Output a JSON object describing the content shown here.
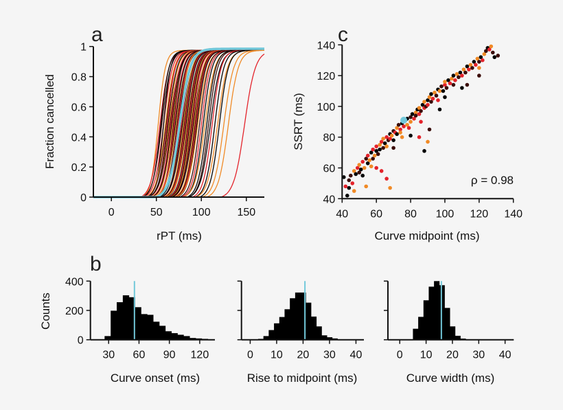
{
  "colors": {
    "black": "#050505",
    "dark_brown": "#3b0d0a",
    "red": "#e3232b",
    "orange": "#f08a26",
    "highlight": "#72c8da"
  },
  "chart_data": [
    {
      "panel": "a",
      "type": "line",
      "xlabel": "rPT (ms)",
      "ylabel": "Fraction cancelled",
      "xlim": [
        -20,
        170
      ],
      "ylim": [
        0,
        1
      ],
      "xticks": [
        0,
        50,
        100,
        150
      ],
      "yticks": [
        0,
        0.2,
        0.4,
        0.6,
        0.8,
        1
      ],
      "ytick_labels": [
        "0",
        "0.2",
        "0.4",
        "0.6",
        "0.8",
        "1"
      ],
      "series_color_order": [
        "black",
        "red",
        "orange",
        "dark_brown"
      ],
      "curves": [
        {
          "midpoint": 52,
          "width": 4,
          "c": 2
        },
        {
          "midpoint": 54,
          "width": 5,
          "c": 1
        },
        {
          "midpoint": 55,
          "width": 4.5,
          "c": 0
        },
        {
          "midpoint": 56,
          "width": 5,
          "c": 3
        },
        {
          "midpoint": 58,
          "width": 5,
          "c": 1
        },
        {
          "midpoint": 58,
          "width": 4,
          "c": 0
        },
        {
          "midpoint": 60,
          "width": 5,
          "c": 2
        },
        {
          "midpoint": 61,
          "width": 5,
          "c": 3
        },
        {
          "midpoint": 62,
          "width": 4.5,
          "c": 1
        },
        {
          "midpoint": 63,
          "width": 5,
          "c": 0
        },
        {
          "midpoint": 64,
          "width": 5,
          "c": 2
        },
        {
          "midpoint": 65,
          "width": 5.5,
          "c": 3
        },
        {
          "midpoint": 66,
          "width": 5,
          "c": 1
        },
        {
          "midpoint": 67,
          "width": 5,
          "c": 0
        },
        {
          "midpoint": 68,
          "width": 5,
          "c": 2
        },
        {
          "midpoint": 69,
          "width": 4.5,
          "c": 3
        },
        {
          "midpoint": 70,
          "width": 5,
          "c": 1
        },
        {
          "midpoint": 71,
          "width": 5,
          "c": 0
        },
        {
          "midpoint": 72,
          "width": 5.5,
          "c": 2
        },
        {
          "midpoint": 73,
          "width": 5,
          "c": 3
        },
        {
          "midpoint": 74,
          "width": 5,
          "c": 1
        },
        {
          "midpoint": 75,
          "width": 5,
          "c": 0
        },
        {
          "midpoint": 76,
          "width": 4.5,
          "c": 2
        },
        {
          "midpoint": 77,
          "width": 5,
          "c": 3
        },
        {
          "midpoint": 78,
          "width": 5,
          "c": 1
        },
        {
          "midpoint": 79,
          "width": 5.5,
          "c": 0
        },
        {
          "midpoint": 80,
          "width": 5,
          "c": 2
        },
        {
          "midpoint": 81,
          "width": 5,
          "c": 3
        },
        {
          "midpoint": 82,
          "width": 5,
          "c": 1
        },
        {
          "midpoint": 83,
          "width": 5,
          "c": 0
        },
        {
          "midpoint": 84,
          "width": 5.5,
          "c": 2
        },
        {
          "midpoint": 85,
          "width": 5,
          "c": 3
        },
        {
          "midpoint": 86,
          "width": 5,
          "c": 1
        },
        {
          "midpoint": 87,
          "width": 5,
          "c": 0
        },
        {
          "midpoint": 88,
          "width": 5,
          "c": 2
        },
        {
          "midpoint": 89,
          "width": 5,
          "c": 3
        },
        {
          "midpoint": 90,
          "width": 5,
          "c": 1
        },
        {
          "midpoint": 91,
          "width": 5.5,
          "c": 0
        },
        {
          "midpoint": 92,
          "width": 5,
          "c": 2
        },
        {
          "midpoint": 93,
          "width": 5,
          "c": 3
        },
        {
          "midpoint": 94,
          "width": 5,
          "c": 1
        },
        {
          "midpoint": 95,
          "width": 5,
          "c": 0
        },
        {
          "midpoint": 96,
          "width": 5.5,
          "c": 2
        },
        {
          "midpoint": 98,
          "width": 5,
          "c": 3
        },
        {
          "midpoint": 100,
          "width": 5,
          "c": 1
        },
        {
          "midpoint": 102,
          "width": 5,
          "c": 0
        },
        {
          "midpoint": 104,
          "width": 5.5,
          "c": 2
        },
        {
          "midpoint": 106,
          "width": 5,
          "c": 0
        },
        {
          "midpoint": 108,
          "width": 5,
          "c": 3
        },
        {
          "midpoint": 110,
          "width": 5.5,
          "c": 0
        },
        {
          "midpoint": 112,
          "width": 5,
          "c": 1
        },
        {
          "midpoint": 115,
          "width": 5,
          "c": 0
        },
        {
          "midpoint": 118,
          "width": 5.5,
          "c": 2
        },
        {
          "midpoint": 120,
          "width": 5,
          "c": 0
        },
        {
          "midpoint": 125,
          "width": 5.5,
          "c": 2
        },
        {
          "midpoint": 130,
          "width": 5.5,
          "c": 2
        },
        {
          "midpoint": 148,
          "width": 6,
          "c": 1
        }
      ],
      "highlight_curve": {
        "midpoint": 76,
        "width": 6
      }
    },
    {
      "panel": "c",
      "type": "scatter",
      "xlabel": "Curve midpoint (ms)",
      "ylabel": "SSRT (ms)",
      "xlim": [
        40,
        140
      ],
      "ylim": [
        40,
        140
      ],
      "xticks": [
        40,
        60,
        80,
        100,
        120,
        140
      ],
      "yticks": [
        40,
        60,
        80,
        100,
        120,
        140
      ],
      "annotation": "ρ = 0.98",
      "point_color_order": [
        "black",
        "dark_brown",
        "red",
        "orange"
      ],
      "points": [
        [
          43,
          42,
          0
        ],
        [
          44,
          47,
          0
        ],
        [
          45,
          55,
          1
        ],
        [
          46,
          50,
          2
        ],
        [
          47,
          58,
          3
        ],
        [
          48,
          56,
          0
        ],
        [
          49,
          60,
          2
        ],
        [
          50,
          57,
          1
        ],
        [
          50,
          62,
          3
        ],
        [
          51,
          59,
          0
        ],
        [
          52,
          64,
          2
        ],
        [
          53,
          60,
          3
        ],
        [
          54,
          66,
          1
        ],
        [
          55,
          63,
          0
        ],
        [
          55,
          68,
          2
        ],
        [
          56,
          65,
          3
        ],
        [
          57,
          70,
          0
        ],
        [
          58,
          66,
          1
        ],
        [
          58,
          72,
          2
        ],
        [
          59,
          68,
          3
        ],
        [
          60,
          71,
          0
        ],
        [
          60,
          74,
          2
        ],
        [
          61,
          69,
          1
        ],
        [
          62,
          75,
          3
        ],
        [
          62,
          72,
          0
        ],
        [
          63,
          77,
          2
        ],
        [
          64,
          73,
          1
        ],
        [
          64,
          79,
          3
        ],
        [
          65,
          76,
          0
        ],
        [
          66,
          80,
          2
        ],
        [
          66,
          74,
          3
        ],
        [
          67,
          78,
          1
        ],
        [
          68,
          82,
          0
        ],
        [
          68,
          79,
          2
        ],
        [
          69,
          81,
          3
        ],
        [
          70,
          84,
          1
        ],
        [
          70,
          78,
          0
        ],
        [
          71,
          83,
          2
        ],
        [
          72,
          86,
          3
        ],
        [
          72,
          82,
          0
        ],
        [
          73,
          88,
          1
        ],
        [
          74,
          85,
          2
        ],
        [
          74,
          83,
          3
        ],
        [
          75,
          89,
          0
        ],
        [
          76,
          87,
          2
        ],
        [
          77,
          91,
          1
        ],
        [
          78,
          88,
          3
        ],
        [
          78,
          92,
          0
        ],
        [
          79,
          86,
          2
        ],
        [
          80,
          93,
          1
        ],
        [
          80,
          90,
          3
        ],
        [
          81,
          95,
          0
        ],
        [
          82,
          92,
          2
        ],
        [
          83,
          96,
          3
        ],
        [
          83,
          94,
          1
        ],
        [
          84,
          98,
          0
        ],
        [
          85,
          95,
          2
        ],
        [
          85,
          99,
          3
        ],
        [
          86,
          97,
          1
        ],
        [
          87,
          101,
          0
        ],
        [
          88,
          99,
          2
        ],
        [
          88,
          103,
          3
        ],
        [
          89,
          100,
          1
        ],
        [
          90,
          104,
          0
        ],
        [
          90,
          101,
          2
        ],
        [
          91,
          106,
          3
        ],
        [
          92,
          103,
          1
        ],
        [
          92,
          108,
          0
        ],
        [
          93,
          105,
          2
        ],
        [
          94,
          109,
          3
        ],
        [
          95,
          107,
          1
        ],
        [
          96,
          111,
          0
        ],
        [
          96,
          104,
          2
        ],
        [
          97,
          110,
          3
        ],
        [
          98,
          113,
          1
        ],
        [
          99,
          110,
          0
        ],
        [
          100,
          114,
          2
        ],
        [
          100,
          116,
          3
        ],
        [
          101,
          112,
          1
        ],
        [
          102,
          117,
          0
        ],
        [
          103,
          115,
          2
        ],
        [
          104,
          118,
          3
        ],
        [
          105,
          114,
          1
        ],
        [
          105,
          120,
          0
        ],
        [
          106,
          117,
          2
        ],
        [
          107,
          121,
          3
        ],
        [
          108,
          119,
          1
        ],
        [
          109,
          122,
          0
        ],
        [
          110,
          120,
          2
        ],
        [
          111,
          124,
          3
        ],
        [
          112,
          122,
          1
        ],
        [
          113,
          126,
          0
        ],
        [
          114,
          124,
          2
        ],
        [
          115,
          127,
          3
        ],
        [
          116,
          125,
          1
        ],
        [
          117,
          129,
          0
        ],
        [
          118,
          127,
          2
        ],
        [
          119,
          131,
          3
        ],
        [
          120,
          129,
          1
        ],
        [
          121,
          132,
          0
        ],
        [
          122,
          130,
          2
        ],
        [
          123,
          134,
          3
        ],
        [
          124,
          136,
          1
        ],
        [
          125,
          138,
          0
        ],
        [
          126,
          137,
          2
        ],
        [
          127,
          139,
          3
        ],
        [
          128,
          135,
          1
        ],
        [
          129,
          132,
          0
        ],
        [
          131,
          133,
          1
        ],
        [
          120,
          120,
          1
        ],
        [
          113,
          114,
          1
        ],
        [
          88,
          71,
          0
        ],
        [
          90,
          77,
          3
        ],
        [
          85,
          80,
          2
        ],
        [
          66,
          53,
          2
        ],
        [
          68,
          47,
          3
        ],
        [
          63,
          58,
          2
        ],
        [
          54,
          48,
          3
        ],
        [
          42,
          48,
          2
        ],
        [
          41,
          54,
          0
        ],
        [
          91,
          85,
          1
        ],
        [
          97,
          98,
          0
        ],
        [
          60,
          60,
          2
        ],
        [
          80,
          81,
          0
        ],
        [
          44,
          52,
          1
        ],
        [
          47,
          45,
          3
        ],
        [
          120,
          125,
          3
        ],
        [
          110,
          112,
          0
        ],
        [
          75,
          80,
          3
        ],
        [
          86,
          90,
          2
        ],
        [
          70,
          73,
          1
        ],
        [
          100,
          106,
          0
        ],
        [
          57,
          61,
          3
        ],
        [
          52,
          55,
          0
        ]
      ],
      "highlight_point": [
        76,
        91
      ]
    },
    {
      "panel": "b",
      "type": "bar",
      "xlabel": "Curve onset (ms)",
      "ylabel": "Counts",
      "xlim": [
        12,
        135
      ],
      "ylim": [
        0,
        400
      ],
      "xticks": [
        30,
        60,
        90,
        120
      ],
      "yticks": [
        0,
        200,
        400
      ],
      "bin_width": 6,
      "bin_centers": [
        29,
        35,
        41,
        47,
        53,
        59,
        65,
        71,
        77,
        83,
        89,
        95,
        101,
        107,
        113,
        119,
        125
      ],
      "values": [
        25,
        198,
        256,
        303,
        290,
        222,
        175,
        170,
        123,
        95,
        58,
        45,
        34,
        25,
        12,
        9,
        6
      ],
      "highlight_x": 55.5
    },
    {
      "type": "bar",
      "xlabel": "Rise to midpoint (ms)",
      "xlim": [
        -3.3,
        43
      ],
      "ylim": [
        0,
        400
      ],
      "xticks": [
        0,
        10,
        20,
        30,
        40
      ],
      "yticks": [
        0,
        200,
        400
      ],
      "bin_width": 2,
      "bin_centers": [
        4,
        6,
        8,
        10,
        12,
        14,
        16,
        18,
        20,
        22,
        24,
        26,
        28,
        30,
        32
      ],
      "values": [
        6,
        25,
        66,
        112,
        155,
        208,
        283,
        322,
        322,
        253,
        158,
        91,
        30,
        17,
        9
      ],
      "highlight_x": 20.7
    },
    {
      "type": "bar",
      "xlabel": "Curve width (ms)",
      "xlim": [
        -4.5,
        43.3
      ],
      "ylim": [
        0,
        400
      ],
      "xticks": [
        0,
        10,
        20,
        30,
        40
      ],
      "yticks": [
        0,
        200,
        400
      ],
      "bin_width": 2,
      "bin_centers": [
        4,
        6,
        8,
        10,
        12,
        14,
        16,
        18,
        20,
        22,
        24,
        26
      ],
      "values": [
        3,
        75,
        156,
        269,
        362,
        400,
        372,
        217,
        91,
        27,
        8,
        3
      ],
      "highlight_x": 15.8
    }
  ]
}
